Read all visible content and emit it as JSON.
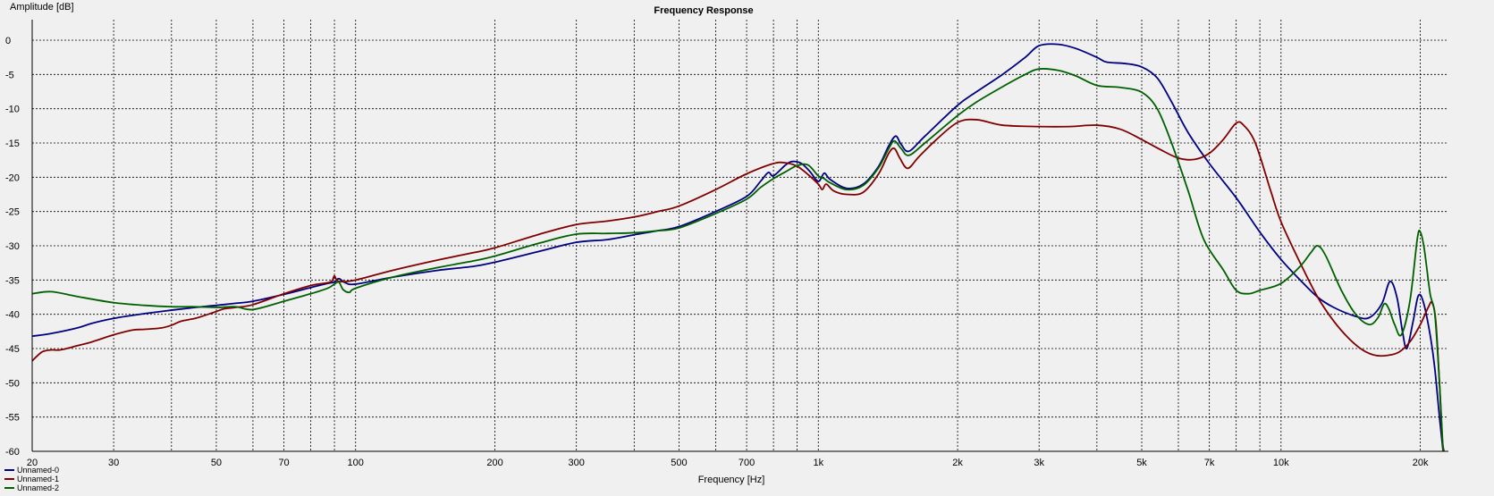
{
  "chart_data": {
    "type": "line",
    "title": "Frequency Response",
    "xlabel": "Frequency [Hz]",
    "ylabel": "Amplitude [dB]",
    "x_scale": "log",
    "xlim": [
      20,
      23000
    ],
    "ylim": [
      -60,
      3
    ],
    "grid": true,
    "legend_position": "bottom-left",
    "x_ticks": [
      {
        "value": 20,
        "label": "20"
      },
      {
        "value": 30,
        "label": "30"
      },
      {
        "value": 50,
        "label": "50"
      },
      {
        "value": 70,
        "label": "70"
      },
      {
        "value": 100,
        "label": "100"
      },
      {
        "value": 200,
        "label": "200"
      },
      {
        "value": 300,
        "label": "300"
      },
      {
        "value": 500,
        "label": "500"
      },
      {
        "value": 700,
        "label": "700"
      },
      {
        "value": 1000,
        "label": "1k"
      },
      {
        "value": 2000,
        "label": "2k"
      },
      {
        "value": 3000,
        "label": "3k"
      },
      {
        "value": 5000,
        "label": "5k"
      },
      {
        "value": 7000,
        "label": "7k"
      },
      {
        "value": 10000,
        "label": "10k"
      },
      {
        "value": 20000,
        "label": "20k"
      }
    ],
    "x_grid_minor": [
      40,
      60,
      80,
      90,
      400,
      600,
      800,
      900,
      4000,
      6000,
      8000,
      9000
    ],
    "y_ticks": [
      0,
      -5,
      -10,
      -15,
      -20,
      -25,
      -30,
      -35,
      -40,
      -45,
      -50,
      -55,
      -60
    ],
    "series": [
      {
        "name": "Unnamed-0",
        "color": "#000080",
        "points": [
          [
            20,
            -43.2
          ],
          [
            22,
            -42.8
          ],
          [
            25,
            -42
          ],
          [
            27,
            -41.3
          ],
          [
            30,
            -40.6
          ],
          [
            35,
            -39.9
          ],
          [
            40,
            -39.4
          ],
          [
            45,
            -39
          ],
          [
            50,
            -38.7
          ],
          [
            55,
            -38.4
          ],
          [
            60,
            -38.1
          ],
          [
            70,
            -37.1
          ],
          [
            80,
            -36.1
          ],
          [
            87,
            -35.5
          ],
          [
            90,
            -35.3
          ],
          [
            92,
            -34.8
          ],
          [
            95,
            -35.4
          ],
          [
            100,
            -35.6
          ],
          [
            120,
            -34.6
          ],
          [
            150,
            -33.6
          ],
          [
            180,
            -33
          ],
          [
            200,
            -32.4
          ],
          [
            250,
            -30.8
          ],
          [
            300,
            -29.5
          ],
          [
            350,
            -29.1
          ],
          [
            400,
            -28.4
          ],
          [
            450,
            -27.8
          ],
          [
            500,
            -27.2
          ],
          [
            600,
            -25
          ],
          [
            700,
            -22.8
          ],
          [
            750,
            -20.6
          ],
          [
            780,
            -19.3
          ],
          [
            800,
            -19.8
          ],
          [
            850,
            -18.2
          ],
          [
            880,
            -17.7
          ],
          [
            920,
            -18
          ],
          [
            960,
            -19.2
          ],
          [
            1000,
            -20.6
          ],
          [
            1030,
            -19.4
          ],
          [
            1060,
            -20.3
          ],
          [
            1150,
            -21.6
          ],
          [
            1250,
            -21
          ],
          [
            1350,
            -18.4
          ],
          [
            1420,
            -15.4
          ],
          [
            1470,
            -14
          ],
          [
            1510,
            -15.2
          ],
          [
            1570,
            -16.2
          ],
          [
            1700,
            -14
          ],
          [
            2000,
            -9.5
          ],
          [
            2200,
            -7.5
          ],
          [
            2500,
            -5
          ],
          [
            2800,
            -2.5
          ],
          [
            3000,
            -0.8
          ],
          [
            3300,
            -0.6
          ],
          [
            3600,
            -1.2
          ],
          [
            4000,
            -2.5
          ],
          [
            4200,
            -3.2
          ],
          [
            4600,
            -3.4
          ],
          [
            5000,
            -3.9
          ],
          [
            5400,
            -5.5
          ],
          [
            5800,
            -9
          ],
          [
            6300,
            -13.5
          ],
          [
            7000,
            -18
          ],
          [
            8000,
            -23
          ],
          [
            9000,
            -28
          ],
          [
            10000,
            -32
          ],
          [
            11000,
            -35
          ],
          [
            12000,
            -37.5
          ],
          [
            13000,
            -39
          ],
          [
            14500,
            -40.3
          ],
          [
            15500,
            -40.5
          ],
          [
            16500,
            -38.5
          ],
          [
            17200,
            -35.2
          ],
          [
            17800,
            -37.5
          ],
          [
            18300,
            -42.5
          ],
          [
            18700,
            -45
          ],
          [
            19300,
            -41
          ],
          [
            19800,
            -37.3
          ],
          [
            20300,
            -38.2
          ],
          [
            21000,
            -43
          ],
          [
            21500,
            -48
          ],
          [
            22000,
            -55
          ],
          [
            22400,
            -60
          ]
        ]
      },
      {
        "name": "Unnamed-1",
        "color": "#800000",
        "points": [
          [
            20,
            -46.8
          ],
          [
            21,
            -45.5
          ],
          [
            22,
            -45.2
          ],
          [
            23,
            -45.2
          ],
          [
            25,
            -44.6
          ],
          [
            27,
            -44
          ],
          [
            30,
            -43
          ],
          [
            33,
            -42.3
          ],
          [
            35,
            -42.2
          ],
          [
            38,
            -42
          ],
          [
            40,
            -41.6
          ],
          [
            42,
            -41
          ],
          [
            45,
            -40.6
          ],
          [
            48,
            -40
          ],
          [
            50,
            -39.6
          ],
          [
            52,
            -39.2
          ],
          [
            55,
            -39
          ],
          [
            60,
            -38.6
          ],
          [
            70,
            -37
          ],
          [
            80,
            -35.8
          ],
          [
            87,
            -35.4
          ],
          [
            89,
            -35.1
          ],
          [
            90,
            -34.4
          ],
          [
            92,
            -35.2
          ],
          [
            100,
            -35
          ],
          [
            120,
            -33.6
          ],
          [
            150,
            -32.1
          ],
          [
            180,
            -31
          ],
          [
            200,
            -30.3
          ],
          [
            250,
            -28.3
          ],
          [
            300,
            -26.9
          ],
          [
            350,
            -26.4
          ],
          [
            400,
            -25.8
          ],
          [
            450,
            -25
          ],
          [
            500,
            -24.2
          ],
          [
            600,
            -21.8
          ],
          [
            700,
            -19.5
          ],
          [
            800,
            -18
          ],
          [
            850,
            -17.9
          ],
          [
            900,
            -18.4
          ],
          [
            950,
            -19.6
          ],
          [
            1000,
            -21
          ],
          [
            1020,
            -21.8
          ],
          [
            1040,
            -21
          ],
          [
            1080,
            -22
          ],
          [
            1150,
            -22.5
          ],
          [
            1250,
            -22.2
          ],
          [
            1350,
            -19.5
          ],
          [
            1420,
            -16.5
          ],
          [
            1460,
            -15.8
          ],
          [
            1500,
            -17.2
          ],
          [
            1560,
            -18.7
          ],
          [
            1650,
            -17
          ],
          [
            1800,
            -14.5
          ],
          [
            2000,
            -12
          ],
          [
            2200,
            -11.6
          ],
          [
            2500,
            -12.4
          ],
          [
            3000,
            -12.6
          ],
          [
            3500,
            -12.6
          ],
          [
            4000,
            -12.4
          ],
          [
            4500,
            -13
          ],
          [
            5000,
            -14.5
          ],
          [
            5500,
            -16
          ],
          [
            6000,
            -17.2
          ],
          [
            6500,
            -17.4
          ],
          [
            7000,
            -16.5
          ],
          [
            7500,
            -14.5
          ],
          [
            8000,
            -12.1
          ],
          [
            8300,
            -12.4
          ],
          [
            8800,
            -15
          ],
          [
            9500,
            -22
          ],
          [
            10000,
            -26.5
          ],
          [
            11000,
            -32.5
          ],
          [
            12000,
            -37.5
          ],
          [
            13000,
            -41
          ],
          [
            14000,
            -43.5
          ],
          [
            15000,
            -45.2
          ],
          [
            16000,
            -46
          ],
          [
            17000,
            -46
          ],
          [
            18000,
            -45.5
          ],
          [
            19000,
            -44
          ],
          [
            20000,
            -41.5
          ],
          [
            20800,
            -39
          ],
          [
            21200,
            -38.3
          ],
          [
            21600,
            -41
          ],
          [
            22000,
            -50
          ],
          [
            22300,
            -58
          ],
          [
            22500,
            -60
          ]
        ]
      },
      {
        "name": "Unnamed-2",
        "color": "#006000",
        "points": [
          [
            20,
            -37
          ],
          [
            22,
            -36.7
          ],
          [
            25,
            -37.4
          ],
          [
            30,
            -38.3
          ],
          [
            35,
            -38.7
          ],
          [
            40,
            -38.9
          ],
          [
            45,
            -38.9
          ],
          [
            50,
            -39
          ],
          [
            55,
            -38.9
          ],
          [
            60,
            -39.3
          ],
          [
            70,
            -38.1
          ],
          [
            80,
            -37
          ],
          [
            87,
            -36.2
          ],
          [
            90,
            -35.6
          ],
          [
            92,
            -35.3
          ],
          [
            94,
            -36.4
          ],
          [
            97,
            -36.8
          ],
          [
            100,
            -36.2
          ],
          [
            120,
            -34.6
          ],
          [
            150,
            -33.2
          ],
          [
            180,
            -32.2
          ],
          [
            200,
            -31.5
          ],
          [
            250,
            -29.6
          ],
          [
            300,
            -28.3
          ],
          [
            350,
            -28.2
          ],
          [
            400,
            -28.1
          ],
          [
            450,
            -27.8
          ],
          [
            500,
            -27.4
          ],
          [
            600,
            -25.3
          ],
          [
            700,
            -23.2
          ],
          [
            750,
            -21.5
          ],
          [
            800,
            -20.2
          ],
          [
            850,
            -19.2
          ],
          [
            900,
            -18.3
          ],
          [
            950,
            -18.2
          ],
          [
            1000,
            -19.8
          ],
          [
            1030,
            -20.2
          ],
          [
            1060,
            -20.8
          ],
          [
            1150,
            -21.8
          ],
          [
            1250,
            -21.2
          ],
          [
            1350,
            -18.6
          ],
          [
            1420,
            -15.8
          ],
          [
            1460,
            -14.7
          ],
          [
            1510,
            -15.8
          ],
          [
            1570,
            -16.8
          ],
          [
            1700,
            -15
          ],
          [
            2000,
            -11
          ],
          [
            2200,
            -9
          ],
          [
            2500,
            -6.8
          ],
          [
            2800,
            -5
          ],
          [
            3000,
            -4.2
          ],
          [
            3300,
            -4.4
          ],
          [
            3600,
            -5.2
          ],
          [
            4000,
            -6.6
          ],
          [
            4500,
            -6.9
          ],
          [
            5000,
            -7.6
          ],
          [
            5400,
            -10
          ],
          [
            5800,
            -15
          ],
          [
            6300,
            -22
          ],
          [
            6800,
            -29
          ],
          [
            7500,
            -33.5
          ],
          [
            8000,
            -36.5
          ],
          [
            8500,
            -37
          ],
          [
            9000,
            -36.5
          ],
          [
            10000,
            -35.5
          ],
          [
            11000,
            -33
          ],
          [
            11600,
            -31
          ],
          [
            12000,
            -30
          ],
          [
            12500,
            -31.5
          ],
          [
            13500,
            -36.5
          ],
          [
            14500,
            -40
          ],
          [
            15500,
            -41.5
          ],
          [
            16200,
            -40.5
          ],
          [
            16700,
            -38.5
          ],
          [
            17100,
            -39.2
          ],
          [
            17600,
            -41.5
          ],
          [
            18200,
            -43
          ],
          [
            19000,
            -38
          ],
          [
            19700,
            -29
          ],
          [
            20000,
            -28
          ],
          [
            20400,
            -30.5
          ],
          [
            21000,
            -37
          ],
          [
            21500,
            -40
          ],
          [
            22000,
            -50
          ],
          [
            22400,
            -60
          ]
        ]
      }
    ]
  }
}
